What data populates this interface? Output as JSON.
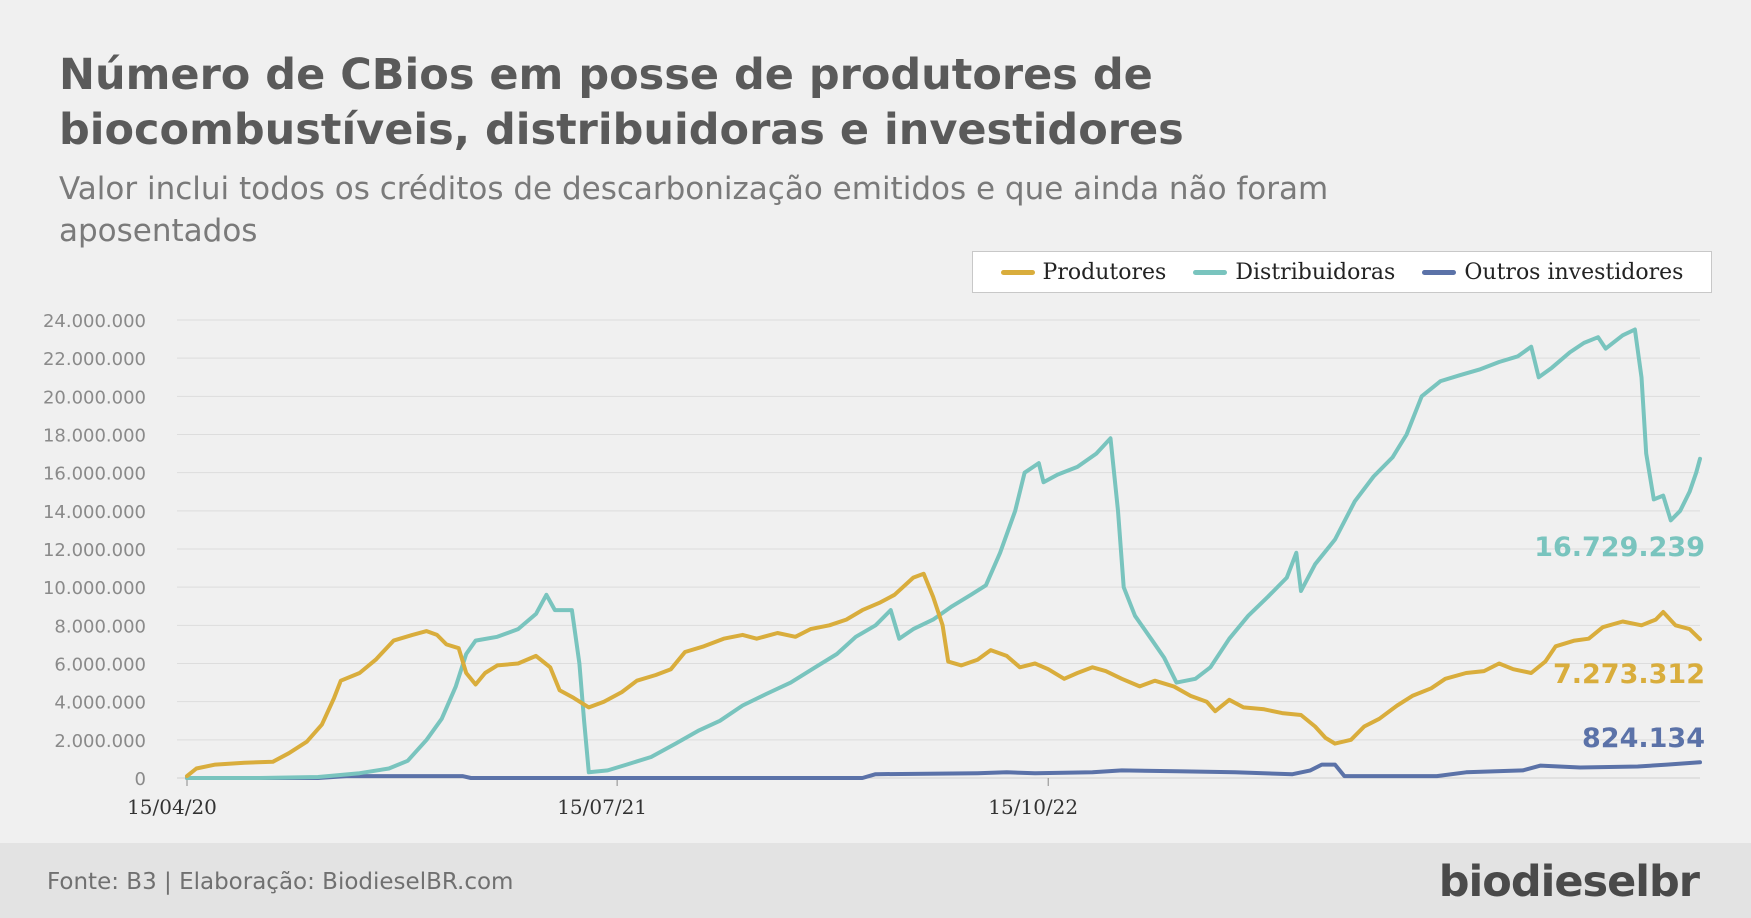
{
  "chart_data": {
    "type": "line",
    "title": "Número de CBios em posse de produtores de biocombustíveis, distribuidoras e investidores",
    "subtitle": "Valor inclui todos os créditos de descarbonização emitidos e que ainda não foram aposentados",
    "xlabel": "",
    "ylabel": "",
    "x_tick_labels": [
      "15/04/20",
      "15/07/21",
      "15/10/22"
    ],
    "y_ticks": [
      "0",
      "2.000.000",
      "4.000.000",
      "6.000.000",
      "8.000.000",
      "10.000.000",
      "12.000.000",
      "14.000.000",
      "16.000.000",
      "18.000.000",
      "20.000.000",
      "22.000.000",
      "24.000.000"
    ],
    "ylim": [
      0,
      24000000
    ],
    "grid": true,
    "legend_position": "top-right",
    "series": [
      {
        "name": "Produtores",
        "color": "#d9ad3c",
        "end_label": "7.273.312",
        "points": [
          [
            "2020-04-15",
            100000
          ],
          [
            "2020-04-25",
            500000
          ],
          [
            "2020-05-15",
            700000
          ],
          [
            "2020-06-15",
            800000
          ],
          [
            "2020-07-15",
            850000
          ],
          [
            "2020-08-01",
            1300000
          ],
          [
            "2020-08-20",
            1900000
          ],
          [
            "2020-09-05",
            2800000
          ],
          [
            "2020-09-18",
            4200000
          ],
          [
            "2020-09-25",
            5100000
          ],
          [
            "2020-10-15",
            5500000
          ],
          [
            "2020-11-01",
            6200000
          ],
          [
            "2020-11-20",
            7200000
          ],
          [
            "2020-12-10",
            7500000
          ],
          [
            "2020-12-25",
            7700000
          ],
          [
            "2021-01-05",
            7500000
          ],
          [
            "2021-01-15",
            7000000
          ],
          [
            "2021-01-28",
            6800000
          ],
          [
            "2021-02-05",
            5500000
          ],
          [
            "2021-02-15",
            4900000
          ],
          [
            "2021-02-25",
            5500000
          ],
          [
            "2021-03-10",
            5900000
          ],
          [
            "2021-04-01",
            6000000
          ],
          [
            "2021-04-20",
            6400000
          ],
          [
            "2021-05-05",
            5800000
          ],
          [
            "2021-05-15",
            4600000
          ],
          [
            "2021-05-30",
            4200000
          ],
          [
            "2021-06-15",
            3700000
          ],
          [
            "2021-07-01",
            4000000
          ],
          [
            "2021-07-20",
            4500000
          ],
          [
            "2021-08-05",
            5100000
          ],
          [
            "2021-08-25",
            5400000
          ],
          [
            "2021-09-10",
            5700000
          ],
          [
            "2021-09-25",
            6600000
          ],
          [
            "2021-10-15",
            6900000
          ],
          [
            "2021-11-05",
            7300000
          ],
          [
            "2021-11-25",
            7500000
          ],
          [
            "2021-12-10",
            7300000
          ],
          [
            "2022-01-01",
            7600000
          ],
          [
            "2022-01-20",
            7400000
          ],
          [
            "2022-02-05",
            7800000
          ],
          [
            "2022-02-25",
            8000000
          ],
          [
            "2022-03-15",
            8300000
          ],
          [
            "2022-04-01",
            8800000
          ],
          [
            "2022-04-20",
            9200000
          ],
          [
            "2022-05-05",
            9600000
          ],
          [
            "2022-05-25",
            10500000
          ],
          [
            "2022-06-05",
            10700000
          ],
          [
            "2022-06-15",
            9500000
          ],
          [
            "2022-06-25",
            8000000
          ],
          [
            "2022-07-01",
            6100000
          ],
          [
            "2022-07-15",
            5900000
          ],
          [
            "2022-08-01",
            6200000
          ],
          [
            "2022-08-15",
            6700000
          ],
          [
            "2022-09-01",
            6400000
          ],
          [
            "2022-09-15",
            5800000
          ],
          [
            "2022-10-01",
            6000000
          ],
          [
            "2022-10-15",
            5700000
          ],
          [
            "2022-11-01",
            5200000
          ],
          [
            "2022-11-15",
            5500000
          ],
          [
            "2022-12-01",
            5800000
          ],
          [
            "2022-12-15",
            5600000
          ],
          [
            "2023-01-01",
            5200000
          ],
          [
            "2023-01-20",
            4800000
          ],
          [
            "2023-02-05",
            5100000
          ],
          [
            "2023-02-25",
            4800000
          ],
          [
            "2023-03-15",
            4300000
          ],
          [
            "2023-04-01",
            4000000
          ],
          [
            "2023-04-10",
            3500000
          ],
          [
            "2023-04-25",
            4100000
          ],
          [
            "2023-05-10",
            3700000
          ],
          [
            "2023-06-01",
            3600000
          ],
          [
            "2023-06-20",
            3400000
          ],
          [
            "2023-07-10",
            3300000
          ],
          [
            "2023-07-25",
            2700000
          ],
          [
            "2023-08-05",
            2100000
          ],
          [
            "2023-08-15",
            1800000
          ],
          [
            "2023-09-01",
            2000000
          ],
          [
            "2023-09-15",
            2700000
          ],
          [
            "2023-10-01",
            3100000
          ],
          [
            "2023-10-20",
            3800000
          ],
          [
            "2023-11-05",
            4300000
          ],
          [
            "2023-11-25",
            4700000
          ],
          [
            "2023-12-10",
            5200000
          ],
          [
            "2024-01-01",
            5500000
          ],
          [
            "2024-01-20",
            5600000
          ],
          [
            "2024-02-05",
            6000000
          ],
          [
            "2024-02-20",
            5700000
          ],
          [
            "2024-03-10",
            5500000
          ],
          [
            "2024-03-25",
            6100000
          ],
          [
            "2024-04-05",
            6900000
          ],
          [
            "2024-04-25",
            7200000
          ],
          [
            "2024-05-10",
            7300000
          ],
          [
            "2024-05-25",
            7900000
          ],
          [
            "2024-06-15",
            8200000
          ],
          [
            "2024-07-05",
            8000000
          ],
          [
            "2024-07-20",
            8300000
          ],
          [
            "2024-07-28",
            8700000
          ],
          [
            "2024-08-10",
            8000000
          ],
          [
            "2024-08-25",
            7800000
          ],
          [
            "2024-09-05",
            7273312
          ]
        ]
      },
      {
        "name": "Distribuidoras",
        "color": "#79c4be",
        "end_label": "16.729.239",
        "points": [
          [
            "2020-04-15",
            0
          ],
          [
            "2020-07-01",
            0
          ],
          [
            "2020-09-01",
            50000
          ],
          [
            "2020-10-15",
            250000
          ],
          [
            "2020-11-15",
            500000
          ],
          [
            "2020-12-05",
            900000
          ],
          [
            "2020-12-25",
            2000000
          ],
          [
            "2021-01-10",
            3100000
          ],
          [
            "2021-01-25",
            4800000
          ],
          [
            "2021-02-05",
            6500000
          ],
          [
            "2021-02-15",
            7200000
          ],
          [
            "2021-03-10",
            7400000
          ],
          [
            "2021-04-01",
            7800000
          ],
          [
            "2021-04-20",
            8600000
          ],
          [
            "2021-05-01",
            9600000
          ],
          [
            "2021-05-10",
            8800000
          ],
          [
            "2021-05-28",
            8800000
          ],
          [
            "2021-06-05",
            6000000
          ],
          [
            "2021-06-10",
            3000000
          ],
          [
            "2021-06-15",
            300000
          ],
          [
            "2021-07-05",
            400000
          ],
          [
            "2021-07-25",
            700000
          ],
          [
            "2021-08-20",
            1100000
          ],
          [
            "2021-09-15",
            1800000
          ],
          [
            "2021-10-10",
            2500000
          ],
          [
            "2021-11-01",
            3000000
          ],
          [
            "2021-11-25",
            3800000
          ],
          [
            "2021-12-20",
            4400000
          ],
          [
            "2022-01-15",
            5000000
          ],
          [
            "2022-02-10",
            5800000
          ],
          [
            "2022-03-05",
            6500000
          ],
          [
            "2022-03-25",
            7400000
          ],
          [
            "2022-04-15",
            8000000
          ],
          [
            "2022-05-01",
            8800000
          ],
          [
            "2022-05-10",
            7300000
          ],
          [
            "2022-05-25",
            7800000
          ],
          [
            "2022-06-15",
            8300000
          ],
          [
            "2022-07-05",
            9000000
          ],
          [
            "2022-07-25",
            9600000
          ],
          [
            "2022-08-10",
            10100000
          ],
          [
            "2022-08-25",
            11800000
          ],
          [
            "2022-09-10",
            14000000
          ],
          [
            "2022-09-20",
            16000000
          ],
          [
            "2022-10-05",
            16500000
          ],
          [
            "2022-10-10",
            15500000
          ],
          [
            "2022-10-25",
            15900000
          ],
          [
            "2022-11-15",
            16300000
          ],
          [
            "2022-12-05",
            17000000
          ],
          [
            "2022-12-20",
            17800000
          ],
          [
            "2022-12-28",
            14000000
          ],
          [
            "2023-01-03",
            10000000
          ],
          [
            "2023-01-15",
            8500000
          ],
          [
            "2023-02-01",
            7300000
          ],
          [
            "2023-02-15",
            6300000
          ],
          [
            "2023-02-28",
            5000000
          ],
          [
            "2023-03-20",
            5200000
          ],
          [
            "2023-04-05",
            5800000
          ],
          [
            "2023-04-25",
            7300000
          ],
          [
            "2023-05-15",
            8500000
          ],
          [
            "2023-06-05",
            9500000
          ],
          [
            "2023-06-25",
            10500000
          ],
          [
            "2023-07-05",
            11800000
          ],
          [
            "2023-07-10",
            9800000
          ],
          [
            "2023-07-25",
            11200000
          ],
          [
            "2023-08-15",
            12500000
          ],
          [
            "2023-09-05",
            14500000
          ],
          [
            "2023-09-25",
            15800000
          ],
          [
            "2023-10-15",
            16800000
          ],
          [
            "2023-10-30",
            18000000
          ],
          [
            "2023-11-15",
            20000000
          ],
          [
            "2023-12-05",
            20800000
          ],
          [
            "2023-12-25",
            21100000
          ],
          [
            "2024-01-15",
            21400000
          ],
          [
            "2024-02-05",
            21800000
          ],
          [
            "2024-02-25",
            22100000
          ],
          [
            "2024-03-10",
            22600000
          ],
          [
            "2024-03-18",
            21000000
          ],
          [
            "2024-04-01",
            21500000
          ],
          [
            "2024-04-20",
            22300000
          ],
          [
            "2024-05-05",
            22800000
          ],
          [
            "2024-05-20",
            23100000
          ],
          [
            "2024-05-28",
            22500000
          ],
          [
            "2024-06-15",
            23200000
          ],
          [
            "2024-06-28",
            23500000
          ],
          [
            "2024-07-05",
            21000000
          ],
          [
            "2024-07-10",
            17000000
          ],
          [
            "2024-07-18",
            14600000
          ],
          [
            "2024-07-28",
            14800000
          ],
          [
            "2024-08-05",
            13500000
          ],
          [
            "2024-08-15",
            14000000
          ],
          [
            "2024-08-25",
            15000000
          ],
          [
            "2024-09-01",
            16000000
          ],
          [
            "2024-09-05",
            16729239
          ]
        ]
      },
      {
        "name": "Outros investidores",
        "color": "#5b72a8",
        "end_label": "824.134",
        "points": [
          [
            "2020-04-15",
            0
          ],
          [
            "2020-09-01",
            0
          ],
          [
            "2020-10-01",
            100000
          ],
          [
            "2021-02-01",
            100000
          ],
          [
            "2021-02-10",
            0
          ],
          [
            "2022-04-01",
            0
          ],
          [
            "2022-04-15",
            200000
          ],
          [
            "2022-08-01",
            250000
          ],
          [
            "2022-09-01",
            300000
          ],
          [
            "2022-10-01",
            250000
          ],
          [
            "2022-12-01",
            300000
          ],
          [
            "2023-01-01",
            400000
          ],
          [
            "2023-03-01",
            350000
          ],
          [
            "2023-05-01",
            300000
          ],
          [
            "2023-07-01",
            200000
          ],
          [
            "2023-07-20",
            400000
          ],
          [
            "2023-08-01",
            700000
          ],
          [
            "2023-08-15",
            700000
          ],
          [
            "2023-08-25",
            100000
          ],
          [
            "2023-12-01",
            100000
          ],
          [
            "2024-01-01",
            300000
          ],
          [
            "2024-03-01",
            400000
          ],
          [
            "2024-03-20",
            650000
          ],
          [
            "2024-05-01",
            550000
          ],
          [
            "2024-07-01",
            600000
          ],
          [
            "2024-08-01",
            700000
          ],
          [
            "2024-09-05",
            824134
          ]
        ]
      }
    ]
  },
  "footer": {
    "source": "Fonte: B3 | Elaboração: BiodieselBR.com",
    "logo": "biodieselbr"
  }
}
